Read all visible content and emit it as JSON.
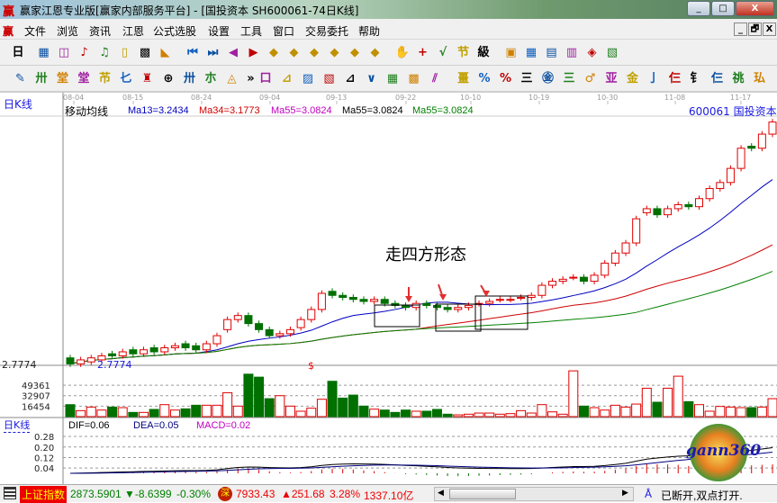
{
  "window": {
    "title": "赢家江恩专业版[赢家内部服务平台] - [国投资本  SH600061-74日K线]",
    "logo": "赢",
    "min": "_",
    "max": "□",
    "close": "X"
  },
  "menu": {
    "logo": "赢",
    "items": [
      "文件",
      "浏览",
      "资讯",
      "江恩",
      "公式选股",
      "设置",
      "工具",
      "窗口",
      "交易委托",
      "帮助"
    ],
    "mdi": [
      "_",
      "🗗",
      "X"
    ]
  },
  "toolbar1": {
    "period": "日",
    "icons": [
      "chart-icon",
      "self-select-icon",
      "indicator3-icon",
      "indicator9-icon",
      "candle-type-icon",
      "kline-icon",
      "color-icon",
      "first-icon",
      "last-icon",
      "prev-icon",
      "next-icon",
      "left-diamond-icon",
      "right-diamond-icon",
      "expand-icon",
      "shrink-icon",
      "zoom-in-icon",
      "zoom-out-icon",
      "hand-icon",
      "crosshair-icon",
      "draw-icon",
      "section-icon",
      "level-icon",
      "calendar-icon",
      "calculator-icon",
      "notes-icon",
      "save-icon",
      "network-icon",
      "trade-icon"
    ]
  },
  "toolbar2": {
    "more": "»",
    "icons": [
      "pen-icon",
      "grid-icon",
      "gold1-icon",
      "gold2-icon",
      "fib-icon",
      "cycle-icon",
      "line-icon",
      "circle-icon",
      "hash-icon",
      "n2-icon",
      "angle-icon",
      "box-icon",
      "fan-icon",
      "square-icon",
      "gann-box-icon",
      "angle-line-icon",
      "wave-icon",
      "grid-red-icon",
      "grid-dark-icon",
      "parallel-icon",
      "table-icon",
      "percent-red-icon",
      "percent-icon",
      "percent-line-icon",
      "gold-coin-icon",
      "gold-line-icon",
      "arrow-up-icon",
      "balance-icon",
      "gold-down-icon",
      "line-j-icon",
      "line-f-icon",
      "line-gold-icon",
      "line-t-icon",
      "line-red-icon",
      "line-4-icon"
    ]
  },
  "chart": {
    "period_label": "日K线",
    "dates": [
      "08-04",
      "08-15",
      "08-24",
      "09-04",
      "09-13",
      "09-22",
      "10-10",
      "10-19",
      "10-30",
      "11-08",
      "11-17"
    ],
    "indicator_name": "移动均线",
    "ma": [
      {
        "label": "Ma13=3.2434",
        "color": "#0000c0"
      },
      {
        "label": "Ma34=3.1773",
        "color": "#d00000"
      },
      {
        "label": "Ma55=3.0824",
        "color": "#c000c0"
      },
      {
        "label": "Ma55=3.0824",
        "color": "#000000"
      },
      {
        "label": "Ma55=3.0824",
        "color": "#008000"
      }
    ],
    "stock": "600061  国投资本",
    "low_price_label": "2.7774",
    "low_marker": "2.7774",
    "dollar_marker": "$",
    "annotation": "走四方形态",
    "colors": {
      "up": "#e00000",
      "down": "#007000",
      "grid": "#888888",
      "axis": "#1a1ae0"
    },
    "candles": [
      [
        2.81,
        2.78
      ],
      [
        2.78,
        2.8
      ],
      [
        2.79,
        2.81
      ],
      [
        2.8,
        2.82
      ],
      [
        2.83,
        2.82
      ],
      [
        2.82,
        2.84
      ],
      [
        2.85,
        2.83
      ],
      [
        2.83,
        2.85
      ],
      [
        2.86,
        2.84
      ],
      [
        2.84,
        2.86
      ],
      [
        2.86,
        2.87
      ],
      [
        2.88,
        2.86
      ],
      [
        2.87,
        2.85
      ],
      [
        2.85,
        2.88
      ],
      [
        2.88,
        2.92
      ],
      [
        2.95,
        3.0
      ],
      [
        3.0,
        3.02
      ],
      [
        3.02,
        2.98
      ],
      [
        2.98,
        2.95
      ],
      [
        2.95,
        2.92
      ],
      [
        2.92,
        2.93
      ],
      [
        2.93,
        2.95
      ],
      [
        2.96,
        3.0
      ],
      [
        3.0,
        3.05
      ],
      [
        3.05,
        3.13
      ],
      [
        3.14,
        3.12
      ],
      [
        3.12,
        3.11
      ],
      [
        3.11,
        3.1
      ],
      [
        3.1,
        3.09
      ],
      [
        3.09,
        3.1
      ],
      [
        3.1,
        3.08
      ],
      [
        3.08,
        3.07
      ],
      [
        3.07,
        3.06
      ],
      [
        3.06,
        3.08
      ],
      [
        3.08,
        3.07
      ],
      [
        3.07,
        3.06
      ],
      [
        3.06,
        3.05
      ],
      [
        3.05,
        3.06
      ],
      [
        3.06,
        3.07
      ],
      [
        3.08,
        3.08
      ],
      [
        3.08,
        3.09
      ],
      [
        3.1,
        3.1
      ],
      [
        3.1,
        3.1
      ],
      [
        3.11,
        3.11
      ],
      [
        3.11,
        3.12
      ],
      [
        3.12,
        3.17
      ],
      [
        3.17,
        3.19
      ],
      [
        3.19,
        3.2
      ],
      [
        3.21,
        3.21
      ],
      [
        3.21,
        3.19
      ],
      [
        3.19,
        3.22
      ],
      [
        3.22,
        3.28
      ],
      [
        3.28,
        3.33
      ],
      [
        3.33,
        3.38
      ],
      [
        3.38,
        3.5
      ],
      [
        3.53,
        3.55
      ],
      [
        3.55,
        3.52
      ],
      [
        3.52,
        3.55
      ],
      [
        3.55,
        3.57
      ],
      [
        3.57,
        3.56
      ],
      [
        3.56,
        3.6
      ],
      [
        3.6,
        3.65
      ],
      [
        3.65,
        3.68
      ],
      [
        3.68,
        3.75
      ],
      [
        3.75,
        3.85
      ],
      [
        3.86,
        3.85
      ],
      [
        3.85,
        3.92
      ],
      [
        3.92,
        3.98
      ]
    ],
    "volume_ticks": [
      "49361",
      "32907",
      "16454"
    ],
    "volumes": [
      18800,
      9400,
      15000,
      10300,
      15000,
      14100,
      6600,
      6600,
      11300,
      18800,
      10300,
      12200,
      17900,
      17900,
      17900,
      37600,
      16500,
      66700,
      62000,
      28200,
      32900,
      16500,
      8500,
      13200,
      27300,
      55500,
      29100,
      33800,
      16500,
      11700,
      10300,
      6600,
      10300,
      8500,
      8500,
      11300,
      3800,
      2800,
      3800,
      5600,
      5600,
      3800,
      4700,
      9400,
      5600,
      18800,
      7500,
      3800,
      71900,
      16500,
      14100,
      10300,
      17900,
      15000,
      19700,
      44600,
      22600,
      44600,
      63500,
      23500,
      18800,
      8500,
      16000,
      15000,
      14100,
      14100,
      15000,
      28200
    ],
    "macd": {
      "period_label": "日K线",
      "dif": "DIF=0.06",
      "dea": "DEA=0.05",
      "macd": "MACD=0.02",
      "ticks": [
        "0.28",
        "0.20",
        "0.12",
        "0.04"
      ]
    },
    "logo_text": "gann360"
  },
  "status": {
    "index_name": "上证指数",
    "sh_value": "2873.5901",
    "sh_change": "▼-8.6399",
    "sh_pct": "-0.30%",
    "sz_badge": "深",
    "sz_value": "7933.43",
    "sz_change": "▲251.68",
    "sz_pct": "3.28%",
    "sz_amount": "1337.10亿",
    "connection": "已断开,双点打开."
  }
}
